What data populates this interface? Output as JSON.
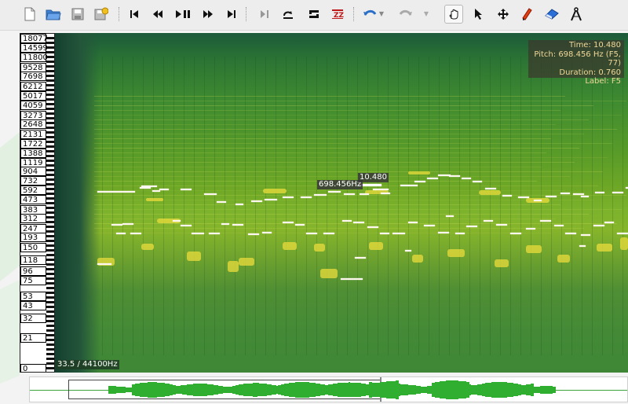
{
  "toolbar": {
    "file_tools": [
      "new-file-icon",
      "open-file-icon",
      "save-icon",
      "save-as-icon"
    ],
    "transport": [
      "skip-start-icon",
      "rewind-icon",
      "play-pause-icon",
      "fast-forward-icon",
      "skip-end-icon"
    ],
    "edit_tools": [
      "step-icon",
      "loop-icon",
      "solo-s-icon",
      "normalize-icon",
      "undo-icon",
      "redo-icon"
    ],
    "tools": [
      "hand-tool-icon",
      "select-arrow-icon",
      "move-cross-icon",
      "pencil-icon",
      "eraser-icon",
      "measure-icon"
    ],
    "active_tool": "hand-tool-icon"
  },
  "keyboard": {
    "frequencies": [
      "18077",
      "14599",
      "11800",
      "9528",
      "7698",
      "6212",
      "5017",
      "4059",
      "3273",
      "2648",
      "2131",
      "1722",
      "1388",
      "1119",
      "904",
      "732",
      "592",
      "473",
      "383",
      "312",
      "247",
      "193",
      "150",
      "118",
      "96",
      "75",
      "53",
      "43",
      "32",
      "21",
      "0"
    ]
  },
  "spectrogram": {
    "colors": {
      "low": "#2b6f3a",
      "mid": "#6fa826",
      "high": "#e9e045",
      "notes": "#fff6f0"
    },
    "frequency_readout": "33.5 / 44100Hz",
    "cursor_pitch_label": "698.456Hz",
    "cursor_time_label": "10.480"
  },
  "note_info": {
    "time": "Time: 10.480",
    "pitch": "Pitch: 698.456 Hz (F5, 77)",
    "duration": "Duration: 0.760",
    "label": "Label: F5"
  },
  "overview": {
    "wave_color": "#2fae2f",
    "playhead_label": ""
  }
}
